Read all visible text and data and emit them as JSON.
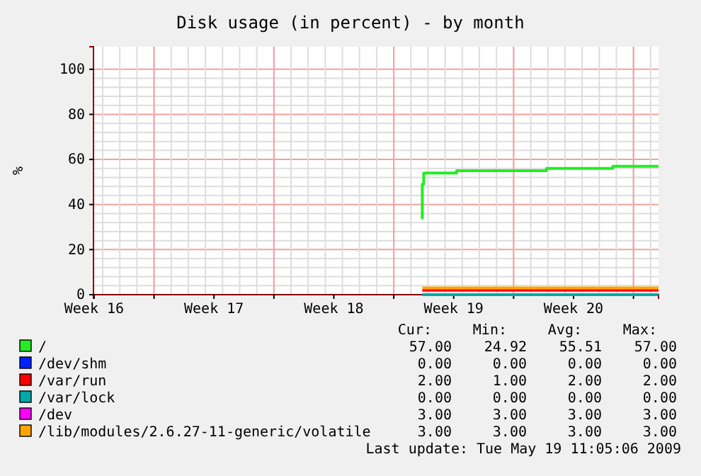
{
  "chart_data": {
    "type": "step",
    "title": "Disk usage (in percent) - by month",
    "ylabel": "%",
    "xlim": [
      "2009-04-16T11:05",
      "2009-05-19T11:05"
    ],
    "xticks": [
      {
        "value": "2009-04-16T12:00",
        "label": "Week 16"
      },
      {
        "value": "2009-04-20",
        "label": null
      },
      {
        "value": "2009-04-23T12:00",
        "label": "Week 17"
      },
      {
        "value": "2009-04-27",
        "label": null
      },
      {
        "value": "2009-04-30T12:00",
        "label": "Week 18"
      },
      {
        "value": "2009-05-04",
        "label": null
      },
      {
        "value": "2009-05-07T12:00",
        "label": "Week 19"
      },
      {
        "value": "2009-05-11",
        "label": null
      },
      {
        "value": "2009-05-14T12:00",
        "label": "Week 20"
      },
      {
        "value": "2009-05-18",
        "label": null
      }
    ],
    "ylim": [
      0,
      110
    ],
    "yticks": [
      0,
      20,
      40,
      60,
      80,
      100
    ],
    "grid": true,
    "legend": "bottom",
    "series": [
      {
        "name": "/",
        "color": "#22ee22",
        "x": [
          "2009-05-05T16:00",
          "2009-05-05T16:00",
          "2009-05-05T18:00",
          "2009-05-07T16:00",
          "2009-05-12T22:00",
          "2009-05-16T19:00",
          "2009-05-19T11:00"
        ],
        "values": [
          33.5,
          49,
          54,
          55,
          56,
          57,
          57
        ]
      },
      {
        "name": "/dev/shm",
        "color": "#0022ff",
        "values": [
          null
        ]
      },
      {
        "name": "/var/run",
        "color": "#ff0000",
        "x": [
          "2009-05-05T16:00",
          "2009-05-19T11:00"
        ],
        "values": [
          2,
          2
        ]
      },
      {
        "name": "/var/lock",
        "color": "#00aaaa",
        "x": [
          "2009-05-05T16:00",
          "2009-05-19T11:00"
        ],
        "values": [
          0,
          0
        ]
      },
      {
        "name": "/dev",
        "color": "#ff00ff",
        "values": [
          null
        ]
      },
      {
        "name": "/lib/modules/2.6.27-11-generic/volatile",
        "color": "#ffa500",
        "x": [
          "2009-05-05T16:00",
          "2009-05-19T11:00"
        ],
        "values": [
          3,
          3
        ]
      }
    ],
    "annotations": [
      "Cur:",
      "Min:",
      "Avg:",
      "Max:",
      "57.00",
      "24.92",
      "55.51",
      "57.00",
      "0.00",
      "0.00",
      "0.00",
      "0.00",
      "2.00",
      "1.00",
      "2.00",
      "2.00",
      "0.00",
      "0.00",
      "0.00",
      "0.00",
      "3.00",
      "3.00",
      "3.00",
      "3.00",
      "3.00",
      "3.00",
      "3.00",
      "3.00",
      "Last update: Tue May 19 11:05:06 2009"
    ]
  }
}
